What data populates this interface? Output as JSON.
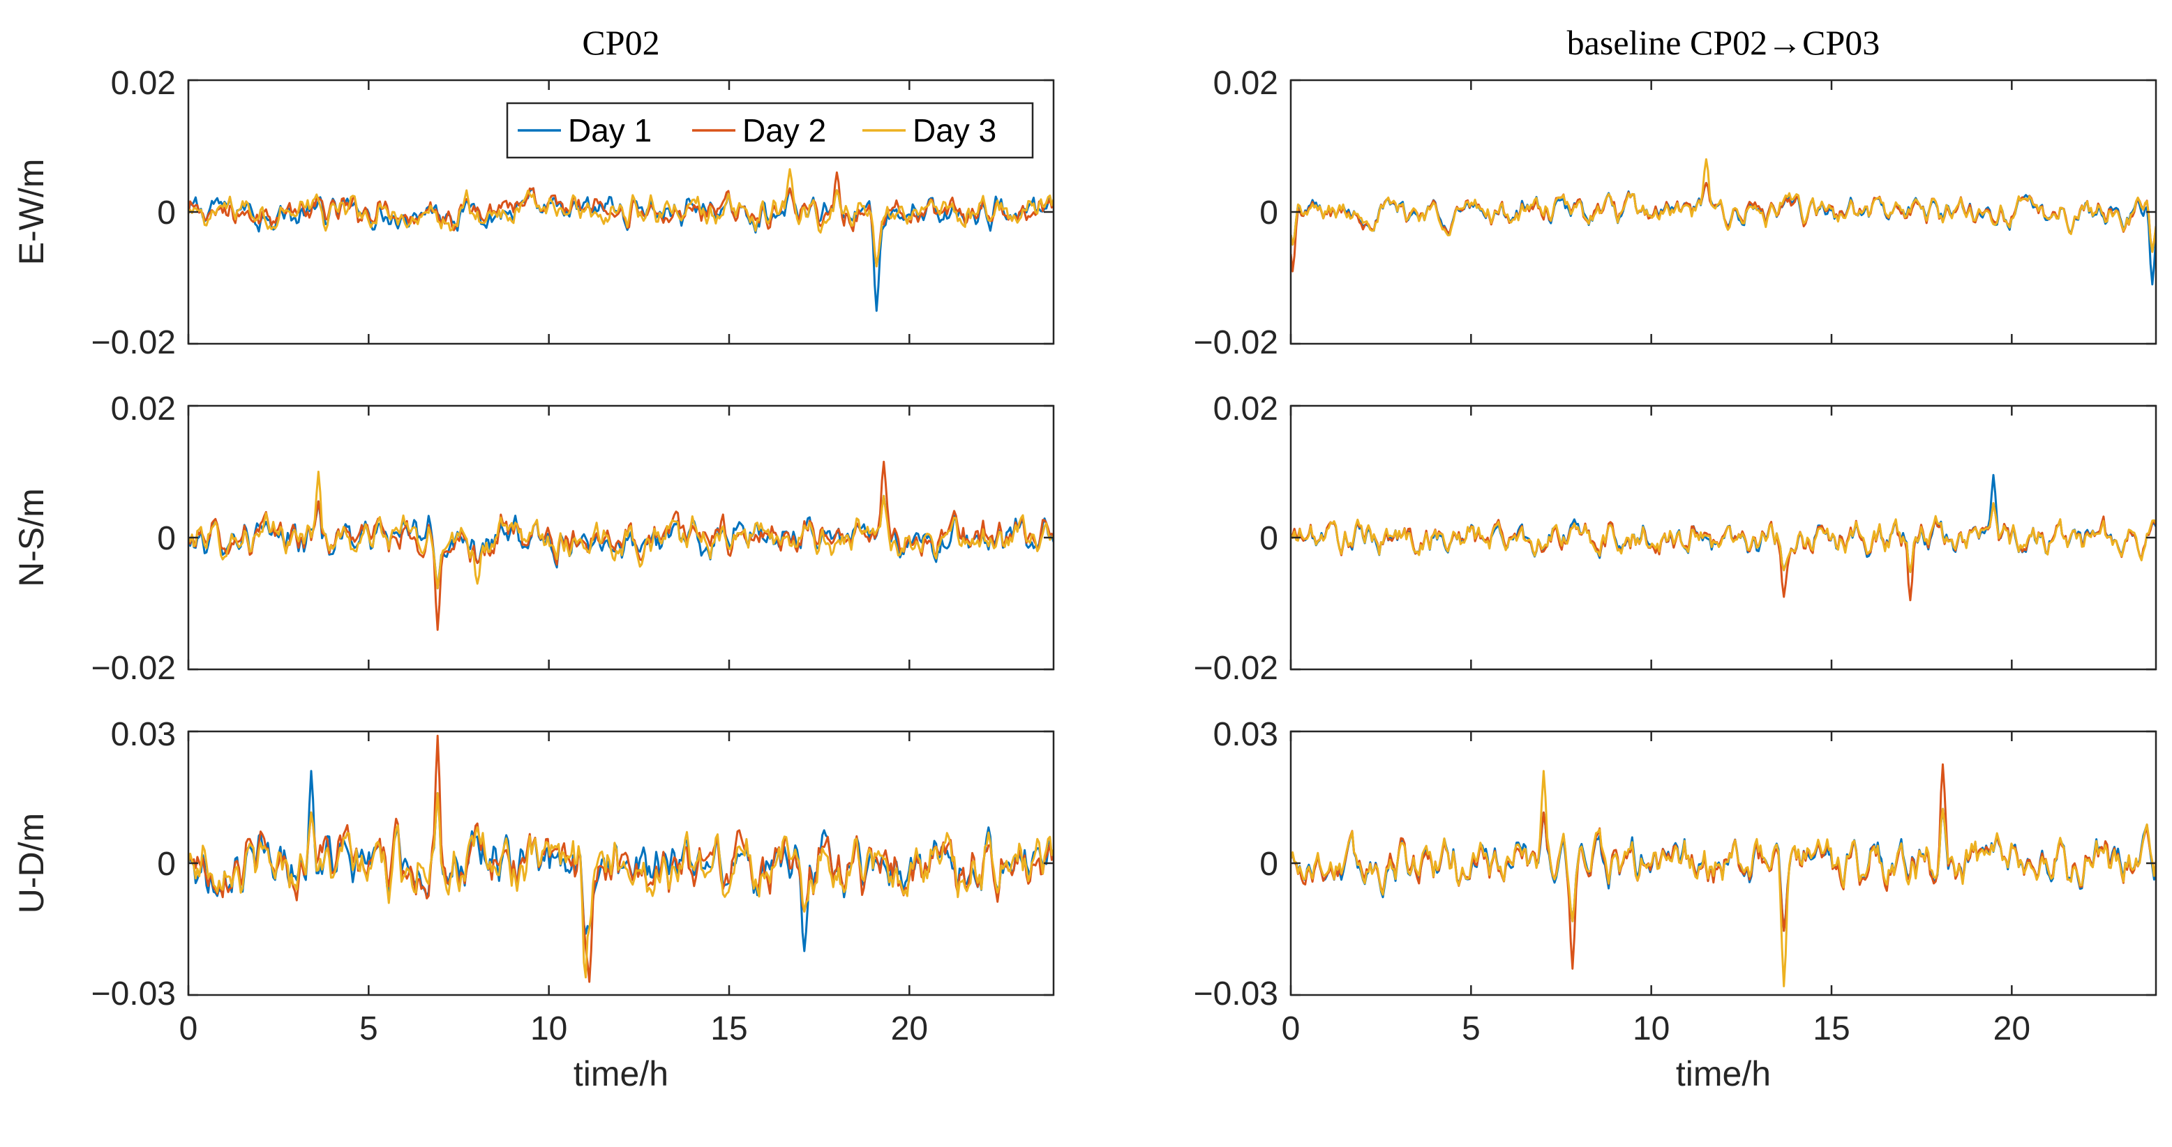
{
  "chart_data": {
    "type": "line",
    "x_unit": "time/h",
    "xlim": [
      0,
      24
    ],
    "xticks": [
      0,
      5,
      10,
      15,
      20
    ],
    "xlabel": "time/h",
    "legend": {
      "placement": "top-right",
      "entries": [
        "Day 1",
        "Day 2",
        "Day 3"
      ]
    },
    "series_colors": [
      "#0072BD",
      "#D95319",
      "#EDB120"
    ],
    "columns": [
      {
        "title": "CP02"
      },
      {
        "title": "baseline CP02→CP03"
      }
    ],
    "rows": [
      {
        "ylabel": "E-W/m",
        "ylim": [
          -0.02,
          0.02
        ],
        "yticks": [
          -0.02,
          0,
          0.02
        ],
        "ytick_labels": [
          "−0.02",
          "0",
          "0.02"
        ]
      },
      {
        "ylabel": "N-S/m",
        "ylim": [
          -0.02,
          0.02
        ],
        "yticks": [
          -0.02,
          0,
          0.02
        ],
        "ytick_labels": [
          "−0.02",
          "0",
          "0.02"
        ]
      },
      {
        "ylabel": "U-D/m",
        "ylim": [
          -0.03,
          0.03
        ],
        "yticks": [
          -0.03,
          0,
          0.03
        ],
        "ytick_labels": [
          "−0.03",
          "0",
          "0.03"
        ]
      }
    ],
    "panels": [
      {
        "col": 0,
        "row": 0,
        "noise_amp": 0.003,
        "series_spread": 0.0018,
        "events": [
          {
            "t": 19.1,
            "v": -0.015,
            "series": 0
          },
          {
            "t": 16.7,
            "v": 0.0065,
            "series": 2
          },
          {
            "t": 18.0,
            "v": 0.006,
            "series": 1
          }
        ]
      },
      {
        "col": 0,
        "row": 1,
        "noise_amp": 0.0032,
        "series_spread": 0.002,
        "events": [
          {
            "t": 6.9,
            "v": -0.014,
            "series": 1
          },
          {
            "t": 3.6,
            "v": 0.01,
            "series": 2
          },
          {
            "t": 19.3,
            "v": 0.0115,
            "series": 1
          },
          {
            "t": 8.0,
            "v": -0.007,
            "series": 2
          }
        ]
      },
      {
        "col": 0,
        "row": 2,
        "noise_amp": 0.008,
        "series_spread": 0.004,
        "events": [
          {
            "t": 6.9,
            "v": 0.029,
            "series": 1
          },
          {
            "t": 11.0,
            "v": -0.03,
            "series": 2
          },
          {
            "t": 11.1,
            "v": -0.027,
            "series": 1
          },
          {
            "t": 3.4,
            "v": 0.021,
            "series": 0
          },
          {
            "t": 17.1,
            "v": -0.02,
            "series": 0
          }
        ]
      },
      {
        "col": 1,
        "row": 0,
        "noise_amp": 0.003,
        "series_spread": 0.0006,
        "events": [
          {
            "t": 11.5,
            "v": 0.008,
            "series": 2
          },
          {
            "t": 23.9,
            "v": -0.011,
            "series": 0
          },
          {
            "t": 0.05,
            "v": -0.009,
            "series": 1
          }
        ]
      },
      {
        "col": 1,
        "row": 1,
        "noise_amp": 0.0032,
        "series_spread": 0.0006,
        "events": [
          {
            "t": 19.5,
            "v": 0.0095,
            "series": 0
          },
          {
            "t": 17.2,
            "v": -0.0095,
            "series": 1
          },
          {
            "t": 13.7,
            "v": -0.009,
            "series": 1
          }
        ]
      },
      {
        "col": 1,
        "row": 2,
        "noise_amp": 0.0085,
        "series_spread": 0.0012,
        "events": [
          {
            "t": 13.7,
            "v": -0.028,
            "series": 2
          },
          {
            "t": 18.1,
            "v": 0.0225,
            "series": 1
          },
          {
            "t": 7.8,
            "v": -0.024,
            "series": 1
          },
          {
            "t": 7.0,
            "v": 0.021,
            "series": 2
          }
        ]
      }
    ]
  }
}
